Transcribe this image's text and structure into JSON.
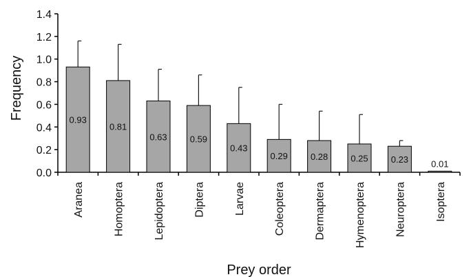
{
  "chart_data": {
    "type": "bar",
    "categories": [
      "Aranea",
      "Homoptera",
      "Lepidoptera",
      "Diptera",
      "Larvae",
      "Coleoptera",
      "Dermaptera",
      "Hymenoptera",
      "Neuroptera",
      "Isoptera"
    ],
    "values": [
      0.93,
      0.81,
      0.63,
      0.59,
      0.43,
      0.29,
      0.28,
      0.25,
      0.23,
      0.01
    ],
    "value_labels": [
      "0.93",
      "0.81",
      "0.63",
      "0.59",
      "0.43",
      "0.29",
      "0.28",
      "0.25",
      "0.23",
      "0.01"
    ],
    "error_upper": [
      1.16,
      1.13,
      0.91,
      0.86,
      0.75,
      0.6,
      0.54,
      0.51,
      0.28,
      0.01
    ],
    "xlabel": "Prey order",
    "ylabel": "Frequency",
    "ylim": [
      0,
      1.4
    ],
    "yticks": [
      0,
      0.2,
      0.4,
      0.6,
      0.8,
      1.0,
      1.2,
      1.4
    ],
    "ytick_labels": [
      "0.0",
      "0.2",
      "0.4",
      "0.6",
      "0.8",
      "1.0",
      "1.2",
      "1.4"
    ],
    "grid": false,
    "bar_color": "#a6a6a6",
    "bar_stroke": "#000000",
    "error_bar_color": "#1a1a1a"
  }
}
